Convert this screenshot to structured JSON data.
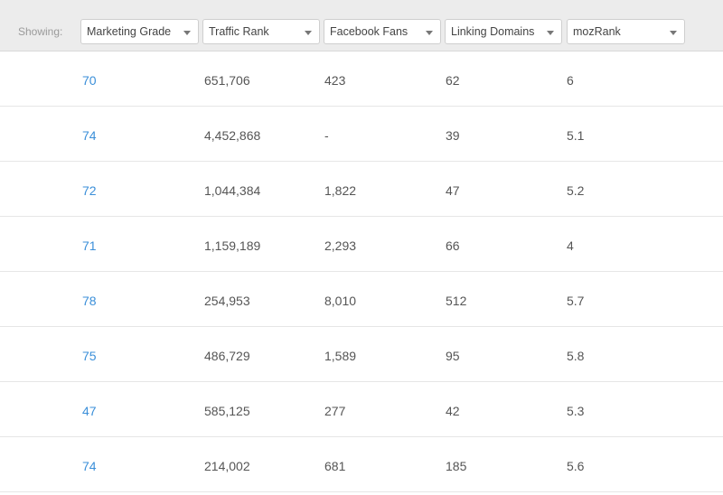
{
  "toolbar": {
    "showing_label": "Showing:",
    "selectors": [
      {
        "value": "Marketing Grade"
      },
      {
        "value": "Traffic Rank"
      },
      {
        "value": "Facebook Fans"
      },
      {
        "value": "Linking Domains"
      },
      {
        "value": "mozRank"
      }
    ]
  },
  "colors": {
    "grade_link": "#3b8fd9",
    "header_bg": "#ececec"
  },
  "rows": [
    {
      "marketing_grade": "70",
      "traffic_rank": "651,706",
      "facebook_fans": "423",
      "linking_domains": "62",
      "mozrank": "6"
    },
    {
      "marketing_grade": "74",
      "traffic_rank": "4,452,868",
      "facebook_fans": "-",
      "linking_domains": "39",
      "mozrank": "5.1"
    },
    {
      "marketing_grade": "72",
      "traffic_rank": "1,044,384",
      "facebook_fans": "1,822",
      "linking_domains": "47",
      "mozrank": "5.2"
    },
    {
      "marketing_grade": "71",
      "traffic_rank": "1,159,189",
      "facebook_fans": "2,293",
      "linking_domains": "66",
      "mozrank": "4"
    },
    {
      "marketing_grade": "78",
      "traffic_rank": "254,953",
      "facebook_fans": "8,010",
      "linking_domains": "512",
      "mozrank": "5.7"
    },
    {
      "marketing_grade": "75",
      "traffic_rank": "486,729",
      "facebook_fans": "1,589",
      "linking_domains": "95",
      "mozrank": "5.8"
    },
    {
      "marketing_grade": "47",
      "traffic_rank": "585,125",
      "facebook_fans": "277",
      "linking_domains": "42",
      "mozrank": "5.3"
    },
    {
      "marketing_grade": "74",
      "traffic_rank": "214,002",
      "facebook_fans": "681",
      "linking_domains": "185",
      "mozrank": "5.6"
    }
  ]
}
